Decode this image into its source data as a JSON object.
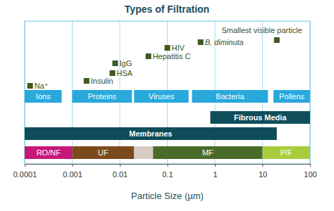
{
  "chart_data": {
    "type": "scatter",
    "title": "Types of Filtration",
    "x_label": "Particle Size (µm)",
    "log": "x",
    "grid": true,
    "xlim": [
      0.0001,
      100
    ],
    "xticks": [
      0.0001,
      0.001,
      0.01,
      0.1,
      1,
      10,
      100
    ],
    "color": "#3e5a1f",
    "marker": "square",
    "points": [
      {
        "label": "Na⁺",
        "x": 0.00013
      },
      {
        "label": "Insulin",
        "x": 0.002
      },
      {
        "label": "HSA",
        "x": 0.007
      },
      {
        "label": "IgG",
        "x": 0.008
      },
      {
        "label": "Hepatitis C",
        "x": 0.04
      },
      {
        "label": "HIV",
        "x": 0.1
      },
      {
        "label": "B. diminuta",
        "x": 0.5
      },
      {
        "label": "Smallest visible particle",
        "x": 20
      }
    ],
    "particle_classes": {
      "color": "#29a8dc",
      "ranges": [
        {
          "name": "Ions",
          "start": 0.0001,
          "end": 0.0006
        },
        {
          "name": "Proteins",
          "start": 0.001,
          "end": 0.018
        },
        {
          "name": "Viruses",
          "start": 0.02,
          "end": 0.28
        },
        {
          "name": "Bacteria",
          "start": 0.33,
          "end": 13
        },
        {
          "name": "Pollens",
          "start": 17,
          "end": 100
        }
      ]
    },
    "media": [
      {
        "name": "Fibrous Media",
        "start": 0.8,
        "end": 100,
        "color": "#104e5b"
      },
      {
        "name": "Membranes",
        "start": 0.0001,
        "end": 20,
        "color": "#0f4c5a"
      }
    ],
    "filtration_types": [
      {
        "name": "RO/NF",
        "start": 0.0001,
        "end": 0.001,
        "color": "#c7177a"
      },
      {
        "name": "UF",
        "start": 0.001,
        "end": 0.02,
        "color": "#7b4a1c"
      },
      {
        "name": null,
        "start": 0.02,
        "end": 0.05,
        "color": "#d6cdc2"
      },
      {
        "name": "MF",
        "start": 0.05,
        "end": 10,
        "color": "#4b6b2b"
      },
      {
        "name": "P/F",
        "start": 10,
        "end": 100,
        "color": "#a9cc3c"
      }
    ]
  }
}
